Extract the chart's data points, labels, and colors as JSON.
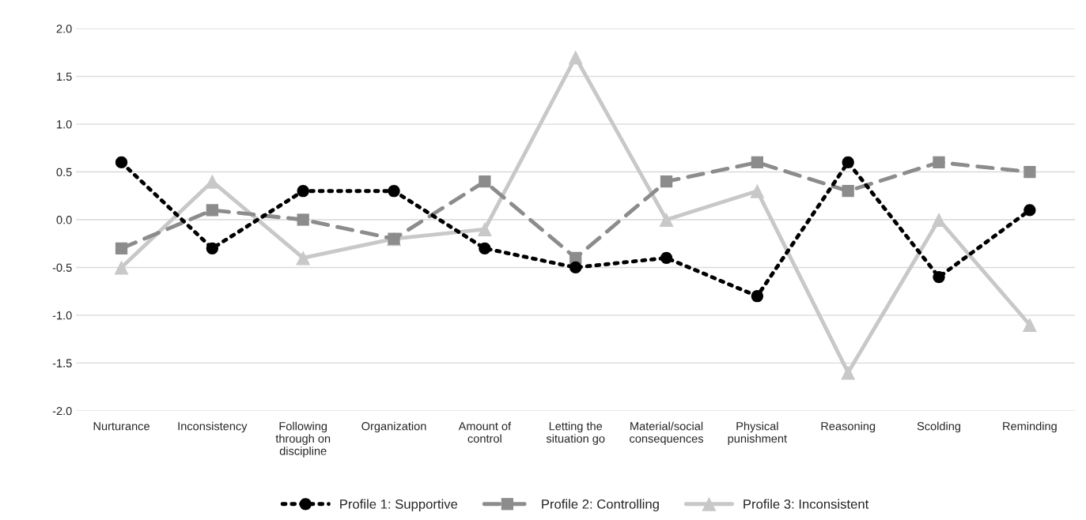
{
  "chart_data": {
    "type": "line",
    "categories": [
      "Nurturance",
      "Inconsistency",
      "Following\nthrough on\ndiscipline",
      "Organization",
      "Amount of\ncontrol",
      "Letting the\nsituation go",
      "Material/social\nconsequences",
      "Physical\npunishment",
      "Reasoning",
      "Scolding",
      "Reminding"
    ],
    "series": [
      {
        "name": "Profile 1: Supportive",
        "color": "#000000",
        "marker": "circle",
        "line_style": "dotted",
        "values": [
          0.6,
          -0.3,
          0.3,
          0.3,
          -0.3,
          -0.5,
          -0.4,
          -0.8,
          0.6,
          -0.6,
          0.1
        ]
      },
      {
        "name": "Profile 2: Controlling",
        "color": "#8c8c8c",
        "marker": "square",
        "line_style": "dashed",
        "values": [
          -0.3,
          0.1,
          0.0,
          -0.2,
          0.4,
          -0.4,
          0.4,
          0.6,
          0.3,
          0.6,
          0.5
        ]
      },
      {
        "name": "Profile 3: Inconsistent",
        "color": "#c8c8c8",
        "marker": "triangle",
        "line_style": "solid",
        "values": [
          -0.5,
          0.4,
          -0.4,
          -0.2,
          -0.1,
          1.7,
          0.0,
          0.3,
          -1.6,
          0.0,
          -1.1
        ]
      }
    ],
    "ylim": [
      -2.0,
      2.0
    ],
    "yticks": [
      {
        "value": -2.0,
        "label": "-2.0"
      },
      {
        "value": -1.5,
        "label": "-1.5"
      },
      {
        "value": -1.0,
        "label": "-1.0"
      },
      {
        "value": -0.5,
        "label": "-0.5"
      },
      {
        "value": 0.0,
        "label": "0.0"
      },
      {
        "value": 0.5,
        "label": "0.5"
      },
      {
        "value": 1.0,
        "label": "1.0"
      },
      {
        "value": 1.5,
        "label": "1.5"
      },
      {
        "value": 2.0,
        "label": "2.0"
      }
    ],
    "grid": "y",
    "legend": "bottom"
  }
}
